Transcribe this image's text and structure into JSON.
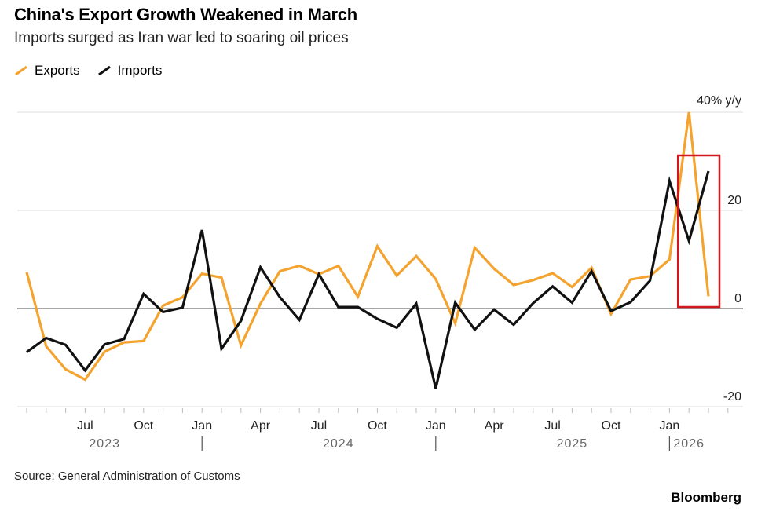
{
  "header": {
    "title": "China's Export Growth Weakened in March",
    "subtitle": "Imports surged as Iran war led to soaring oil prices"
  },
  "legend": {
    "exports_label": "Exports",
    "imports_label": "Imports"
  },
  "footer": {
    "source": "Source: General Administration of Customs",
    "brand": "Bloomberg"
  },
  "colors": {
    "exports": "#F5A32F",
    "imports": "#111111",
    "highlight": "#D0181E",
    "grid": "#DDDDDD",
    "zero": "#888888"
  },
  "chart_data": {
    "type": "line",
    "unit_label": "40% y/y",
    "ylim": [
      -20,
      40
    ],
    "y_ticks": [
      {
        "value": 20,
        "label": "20"
      },
      {
        "value": 0,
        "label": "0"
      },
      {
        "value": -20,
        "label": "-20"
      }
    ],
    "x_start": "2023-04",
    "x_ticks": [
      {
        "month": "2023-07",
        "label": "Jul"
      },
      {
        "month": "2023-10",
        "label": "Oct"
      },
      {
        "month": "2024-01",
        "label": "Jan"
      },
      {
        "month": "2024-04",
        "label": "Apr"
      },
      {
        "month": "2024-07",
        "label": "Jul"
      },
      {
        "month": "2024-10",
        "label": "Oct"
      },
      {
        "month": "2025-01",
        "label": "Jan"
      },
      {
        "month": "2025-04",
        "label": "Apr"
      },
      {
        "month": "2025-07",
        "label": "Jul"
      },
      {
        "month": "2025-10",
        "label": "Oct"
      },
      {
        "month": "2026-01",
        "label": "Jan"
      }
    ],
    "year_labels": [
      {
        "month": "2023-08",
        "label": "2023"
      },
      {
        "month": "2024-08",
        "label": "2024"
      },
      {
        "month": "2025-08",
        "label": "2025"
      },
      {
        "month": "2026-02",
        "label": "2026"
      }
    ],
    "year_separators": [
      "2024-01",
      "2025-01",
      "2026-01"
    ],
    "series": [
      {
        "name": "Exports",
        "values": [
          7.4,
          -7.7,
          -12.4,
          -14.5,
          -8.8,
          -6.9,
          -6.6,
          0.6,
          2.3,
          7.1,
          6.3,
          -7.5,
          1.0,
          7.6,
          8.7,
          7.0,
          8.7,
          2.4,
          12.7,
          6.7,
          10.7,
          6.0,
          -3.0,
          12.4,
          8.1,
          4.8,
          5.8,
          7.2,
          4.4,
          8.3,
          -1.1,
          5.9,
          6.6,
          10.0,
          40.0,
          2.5
        ]
      },
      {
        "name": "Imports",
        "values": [
          -8.9,
          -6.0,
          -7.4,
          -12.6,
          -7.3,
          -6.2,
          3.0,
          -0.7,
          0.2,
          16.0,
          -8.2,
          -2.5,
          8.4,
          2.3,
          -2.3,
          7.0,
          0.3,
          0.3,
          -2.1,
          -3.9,
          1.0,
          -16.3,
          1.2,
          -4.3,
          -0.2,
          -3.3,
          1.1,
          4.5,
          1.2,
          7.6,
          -0.5,
          1.3,
          5.7,
          26.0,
          13.8,
          28.0
        ]
      }
    ],
    "highlight": {
      "from": "2026-02",
      "to": "2026-03"
    }
  }
}
